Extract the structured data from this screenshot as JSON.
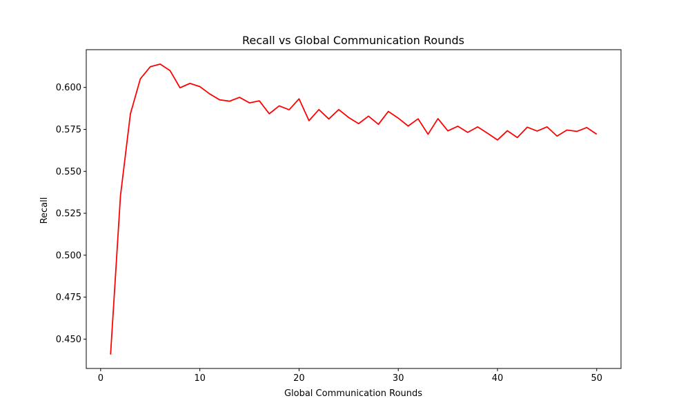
{
  "chart_data": {
    "type": "line",
    "title": "Recall vs Global Communication Rounds",
    "xlabel": "Global Communication Rounds",
    "ylabel": "Recall",
    "xlim": [
      -1.45,
      52.45
    ],
    "ylim": [
      0.4325,
      0.6225
    ],
    "xticks": [
      0,
      10,
      20,
      30,
      40,
      50
    ],
    "yticks": [
      0.45,
      0.475,
      0.5,
      0.525,
      0.55,
      0.575,
      0.6
    ],
    "ytick_labels": [
      "0.450",
      "0.475",
      "0.500",
      "0.525",
      "0.550",
      "0.575",
      "0.600"
    ],
    "grid": false,
    "series": [
      {
        "color": "#ff0000",
        "x": [
          1,
          2,
          3,
          4,
          5,
          6,
          7,
          8,
          9,
          10,
          11,
          12,
          13,
          14,
          15,
          16,
          17,
          18,
          19,
          20,
          21,
          22,
          23,
          24,
          25,
          26,
          27,
          28,
          29,
          30,
          31,
          32,
          33,
          34,
          35,
          36,
          37,
          38,
          39,
          40,
          41,
          42,
          43,
          44,
          45,
          46,
          47,
          48,
          49,
          50
        ],
        "y": [
          0.4408,
          0.5355,
          0.5842,
          0.6051,
          0.6123,
          0.6139,
          0.61,
          0.5998,
          0.6024,
          0.6005,
          0.5961,
          0.5926,
          0.5918,
          0.5941,
          0.5908,
          0.592,
          0.5843,
          0.589,
          0.5867,
          0.5932,
          0.5802,
          0.5868,
          0.5812,
          0.5868,
          0.5821,
          0.5784,
          0.5829,
          0.578,
          0.5857,
          0.5817,
          0.577,
          0.5813,
          0.5721,
          0.5814,
          0.5741,
          0.5769,
          0.5732,
          0.5765,
          0.5727,
          0.5687,
          0.5742,
          0.5701,
          0.5763,
          0.574,
          0.5765,
          0.571,
          0.5746,
          0.5738,
          0.5761,
          0.5721
        ]
      }
    ]
  }
}
